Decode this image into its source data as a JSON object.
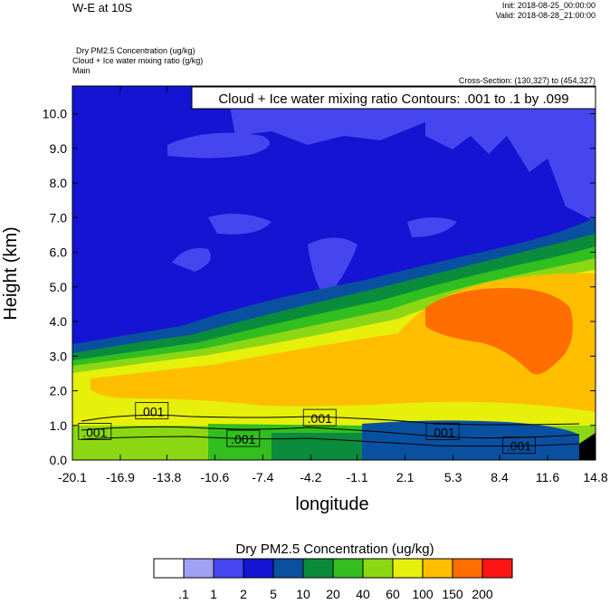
{
  "header": {
    "title": "W-E at 10S",
    "init": "Init: 2018-08-25_00:00:00",
    "valid": "Valid: 2018-08-28_21:00:00",
    "field1": "Dry PM2.5 Concentration   (ug/kg)",
    "field2": "Cloud + Ice water mixing ratio   (g/kg)",
    "field3": "Main",
    "cross_section": "Cross-Section: (130,327) to (454,327)"
  },
  "chart_data": {
    "type": "heatmap",
    "contour_label": "Cloud + Ice water mixing ratio Contours: .001 to .1 by .099",
    "xlabel": "longitude",
    "ylabel": "Height (km)",
    "x_ticks": [
      "-20.1",
      "-16.9",
      "-13.8",
      "-10.6",
      "-7.4",
      "-4.2",
      "-1.1",
      "2.1",
      "5.3",
      "8.4",
      "11.6",
      "14.8"
    ],
    "y_ticks": [
      "0.0",
      "1.0",
      "2.0",
      "3.0",
      "4.0",
      "5.0",
      "6.0",
      "7.0",
      "8.0",
      "9.0",
      "10.0"
    ],
    "xlim": [
      -20.1,
      14.8
    ],
    "ylim": [
      0,
      10.8
    ],
    "contour_values": [
      {
        "text": ".001",
        "x": -18.6,
        "y": 0.8
      },
      {
        "text": ".001",
        "x": -14.8,
        "y": 1.4
      },
      {
        "text": ".001",
        "x": -8.7,
        "y": 0.6
      },
      {
        "text": ".001",
        "x": -3.6,
        "y": 1.2
      },
      {
        "text": ".001",
        "x": 4.6,
        "y": 0.8
      },
      {
        "text": ".001",
        "x": 9.7,
        "y": 0.4
      }
    ],
    "colorbar": {
      "title": "Dry PM2.5 Concentration  (ug/kg)",
      "labels": [
        ".1",
        "1",
        "2",
        "5",
        "10",
        "20",
        "40",
        "60",
        "100",
        "150",
        "200"
      ],
      "colors": [
        "#ffffff",
        "#a0a0f5",
        "#4646f0",
        "#1414d2",
        "#0a50a0",
        "#0a8c3c",
        "#32be1e",
        "#8cd714",
        "#e6f00a",
        "#ffbe00",
        "#ff6e00",
        "#ff1414"
      ]
    }
  }
}
